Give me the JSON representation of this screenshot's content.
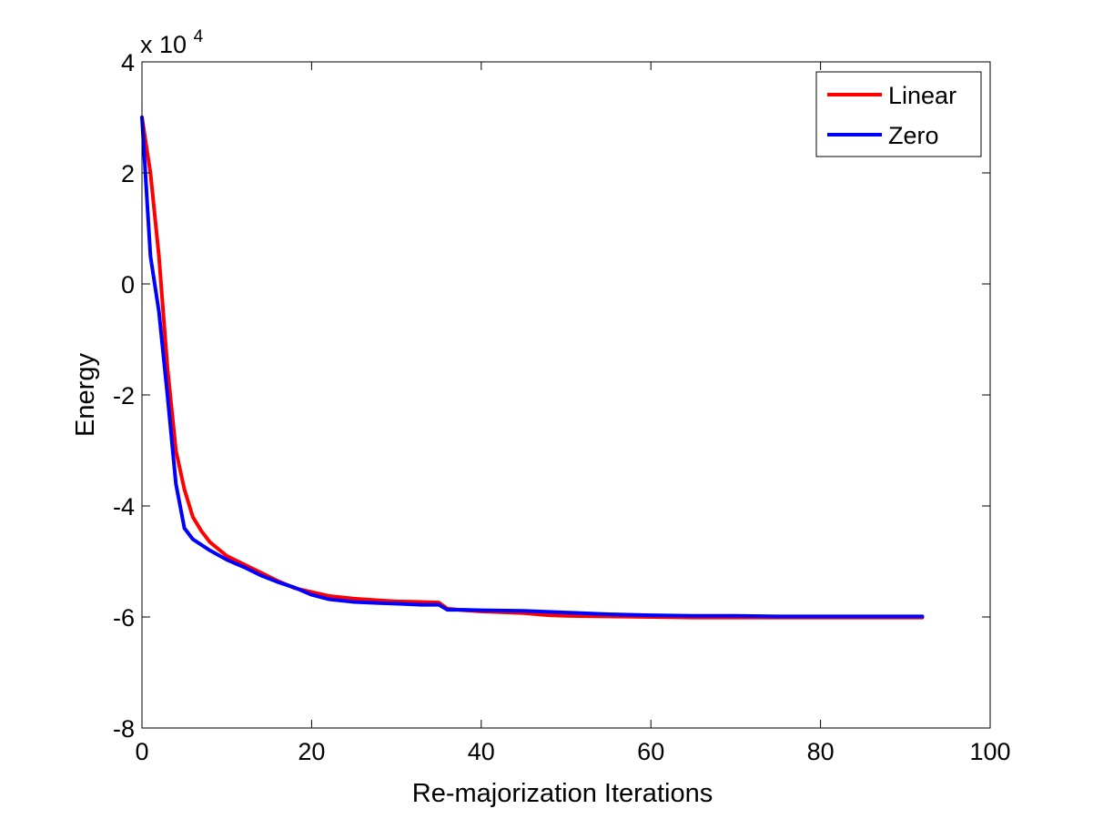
{
  "chart_data": {
    "type": "line",
    "title": "",
    "xlabel": "Re-majorization Iterations",
    "ylabel": "Energy",
    "y_multiplier_label": {
      "prefix": "x 10",
      "exponent": "4"
    },
    "xlim": [
      0,
      100
    ],
    "ylim": [
      -8,
      4
    ],
    "x_ticks": [
      "0",
      "20",
      "40",
      "60",
      "80",
      "100"
    ],
    "y_ticks": [
      "-8",
      "-6",
      "-4",
      "-2",
      "0",
      "2",
      "4"
    ],
    "grid": false,
    "legend_position": "top-right",
    "series": [
      {
        "name": "Linear",
        "color": "#ff0000",
        "points": [
          [
            0,
            3.0
          ],
          [
            1,
            2.0
          ],
          [
            2,
            0.5
          ],
          [
            3,
            -1.5
          ],
          [
            4,
            -3.0
          ],
          [
            5,
            -3.7
          ],
          [
            6,
            -4.2
          ],
          [
            7,
            -4.45
          ],
          [
            8,
            -4.65
          ],
          [
            10,
            -4.9
          ],
          [
            12,
            -5.05
          ],
          [
            14,
            -5.2
          ],
          [
            16,
            -5.35
          ],
          [
            18,
            -5.48
          ],
          [
            20,
            -5.55
          ],
          [
            22,
            -5.62
          ],
          [
            25,
            -5.67
          ],
          [
            28,
            -5.7
          ],
          [
            30,
            -5.72
          ],
          [
            33,
            -5.73
          ],
          [
            35,
            -5.74
          ],
          [
            36,
            -5.85
          ],
          [
            38,
            -5.88
          ],
          [
            40,
            -5.9
          ],
          [
            45,
            -5.93
          ],
          [
            48,
            -5.97
          ],
          [
            50,
            -5.98
          ],
          [
            55,
            -5.99
          ],
          [
            60,
            -6.0
          ],
          [
            65,
            -6.01
          ],
          [
            70,
            -6.01
          ],
          [
            75,
            -6.01
          ],
          [
            80,
            -6.01
          ],
          [
            85,
            -6.01
          ],
          [
            90,
            -6.01
          ],
          [
            92,
            -6.01
          ]
        ]
      },
      {
        "name": "Zero",
        "color": "#0000ff",
        "points": [
          [
            0,
            3.0
          ],
          [
            1,
            0.5
          ],
          [
            2,
            -0.5
          ],
          [
            3,
            -2.0
          ],
          [
            4,
            -3.6
          ],
          [
            5,
            -4.4
          ],
          [
            6,
            -4.6
          ],
          [
            8,
            -4.8
          ],
          [
            10,
            -4.97
          ],
          [
            12,
            -5.1
          ],
          [
            14,
            -5.25
          ],
          [
            16,
            -5.37
          ],
          [
            18,
            -5.47
          ],
          [
            20,
            -5.6
          ],
          [
            22,
            -5.68
          ],
          [
            25,
            -5.73
          ],
          [
            28,
            -5.75
          ],
          [
            30,
            -5.76
          ],
          [
            33,
            -5.78
          ],
          [
            35,
            -5.78
          ],
          [
            36,
            -5.87
          ],
          [
            38,
            -5.87
          ],
          [
            40,
            -5.88
          ],
          [
            45,
            -5.89
          ],
          [
            50,
            -5.92
          ],
          [
            55,
            -5.95
          ],
          [
            60,
            -5.97
          ],
          [
            65,
            -5.98
          ],
          [
            70,
            -5.98
          ],
          [
            75,
            -5.99
          ],
          [
            80,
            -5.99
          ],
          [
            85,
            -5.99
          ],
          [
            90,
            -5.99
          ],
          [
            92,
            -5.99
          ]
        ]
      }
    ]
  }
}
